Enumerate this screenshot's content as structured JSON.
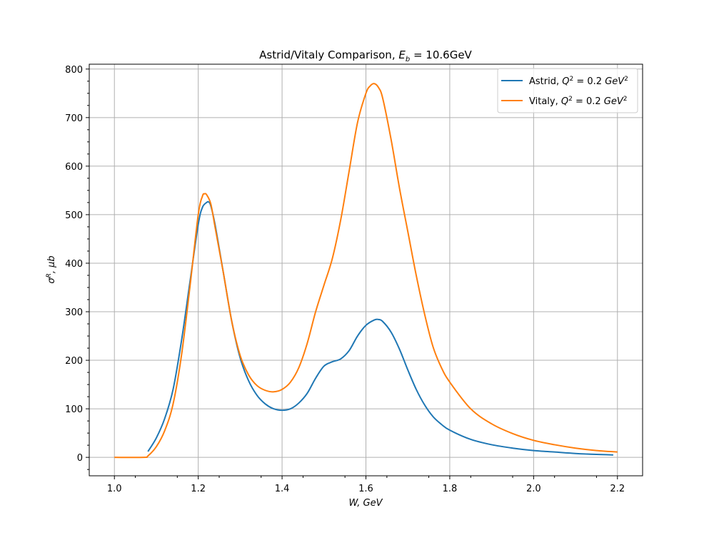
{
  "chart_data": {
    "type": "line",
    "title": "Astrid/Vitaly Comparison, E_b = 10.6GeV",
    "title_parts": {
      "prefix": "Astrid/Vitaly Comparison, ",
      "sym": "E",
      "sub": "b",
      "rest": " = 10.6GeV"
    },
    "xlabel": "W, GeV",
    "ylabel_parts": {
      "sym": "σ",
      "sup": "R",
      "rest": ", μb"
    },
    "xlim": [
      0.94,
      2.26
    ],
    "ylim": [
      -38,
      810
    ],
    "xticks": [
      1.0,
      1.2,
      1.4,
      1.6,
      1.8,
      2.0,
      2.2
    ],
    "xtick_labels": [
      "1.0",
      "1.2",
      "1.4",
      "1.6",
      "1.8",
      "2.0",
      "2.2"
    ],
    "yticks": [
      0,
      100,
      200,
      300,
      400,
      500,
      600,
      700,
      800
    ],
    "ytick_labels": [
      "0",
      "100",
      "200",
      "300",
      "400",
      "500",
      "600",
      "700",
      "800"
    ],
    "grid": true,
    "legend_position": "top-right",
    "series": [
      {
        "name": "Astrid, Q^2 = 0.2 GeV^2",
        "legend_parts": {
          "prefix": "Astrid, ",
          "sym": "Q",
          "sup": "2",
          "mid": " = 0.2 ",
          "unit": "GeV",
          "unit_sup": "2"
        },
        "color": "#1f77b4",
        "x": [
          1.08,
          1.1,
          1.12,
          1.14,
          1.16,
          1.18,
          1.2,
          1.21,
          1.22,
          1.225,
          1.23,
          1.24,
          1.26,
          1.28,
          1.3,
          1.32,
          1.34,
          1.36,
          1.38,
          1.4,
          1.42,
          1.44,
          1.46,
          1.48,
          1.5,
          1.52,
          1.54,
          1.56,
          1.58,
          1.6,
          1.62,
          1.63,
          1.64,
          1.66,
          1.68,
          1.7,
          1.72,
          1.74,
          1.76,
          1.78,
          1.8,
          1.85,
          1.9,
          1.95,
          2.0,
          2.05,
          2.1,
          2.15,
          2.19
        ],
        "y": [
          12,
          40,
          80,
          140,
          240,
          360,
          480,
          515,
          525,
          526,
          518,
          480,
          380,
          280,
          205,
          158,
          128,
          110,
          100,
          97,
          100,
          112,
          132,
          163,
          188,
          197,
          203,
          220,
          250,
          272,
          283,
          284,
          280,
          258,
          223,
          180,
          140,
          108,
          84,
          68,
          56,
          37,
          26,
          19,
          14,
          11,
          8,
          6,
          5
        ]
      },
      {
        "name": "Vitaly, Q^2 = 0.2 GeV^2",
        "legend_parts": {
          "prefix": "Vitaly, ",
          "sym": "Q",
          "sup": "2",
          "mid": " = 0.2 ",
          "unit": "GeV",
          "unit_sup": "2"
        },
        "color": "#ff7f0e",
        "x": [
          1.0,
          1.07,
          1.08,
          1.1,
          1.12,
          1.14,
          1.16,
          1.18,
          1.2,
          1.21,
          1.215,
          1.22,
          1.23,
          1.24,
          1.26,
          1.28,
          1.3,
          1.32,
          1.34,
          1.36,
          1.38,
          1.4,
          1.42,
          1.44,
          1.46,
          1.48,
          1.5,
          1.52,
          1.54,
          1.56,
          1.58,
          1.6,
          1.61,
          1.62,
          1.63,
          1.64,
          1.66,
          1.68,
          1.7,
          1.72,
          1.74,
          1.76,
          1.78,
          1.8,
          1.85,
          1.9,
          1.95,
          2.0,
          2.05,
          2.1,
          2.15,
          2.2
        ],
        "y": [
          0,
          0,
          3,
          22,
          55,
          110,
          210,
          350,
          500,
          538,
          543,
          541,
          522,
          475,
          380,
          280,
          210,
          170,
          148,
          138,
          135,
          140,
          155,
          185,
          235,
          300,
          355,
          410,
          490,
          590,
          690,
          750,
          765,
          770,
          762,
          740,
          655,
          555,
          465,
          375,
          295,
          228,
          185,
          155,
          100,
          69,
          49,
          35,
          26,
          19,
          14,
          11
        ]
      }
    ]
  }
}
